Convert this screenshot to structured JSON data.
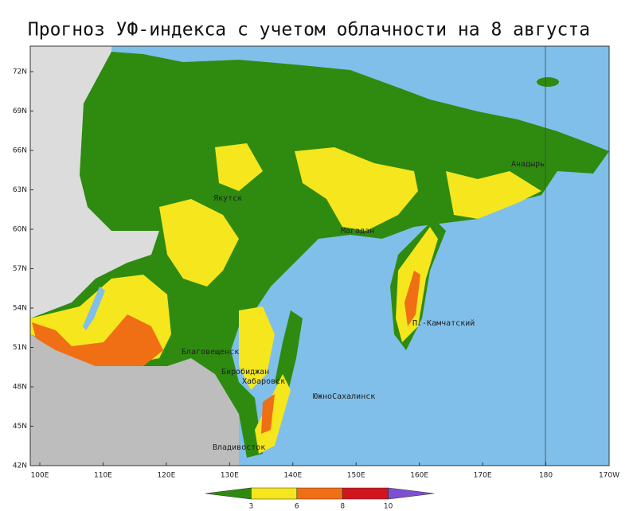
{
  "title": "Прогноз УФ-индекса с учетом облачности на  8 августа",
  "lat_labels": [
    "72N",
    "69N",
    "66N",
    "63N",
    "60N",
    "57N",
    "54N",
    "51N",
    "48N",
    "45N",
    "42N"
  ],
  "lon_labels": [
    "100E",
    "110E",
    "120E",
    "130E",
    "140E",
    "150E",
    "160E",
    "170E",
    "180",
    "170W"
  ],
  "cities": [
    "Якутск",
    "Магадан",
    "Анадырь",
    "П.-Камчатский",
    "Благовещенск",
    "Биробиджан",
    "Хабаровск",
    "ЮжноСахалинск",
    "Владивосток"
  ],
  "colorbar": {
    "ticks": [
      3,
      6,
      8,
      10
    ],
    "colors": [
      "#2e8b0f",
      "#f5e61e",
      "#f06e14",
      "#d2141e",
      "#7d50d2"
    ]
  }
}
